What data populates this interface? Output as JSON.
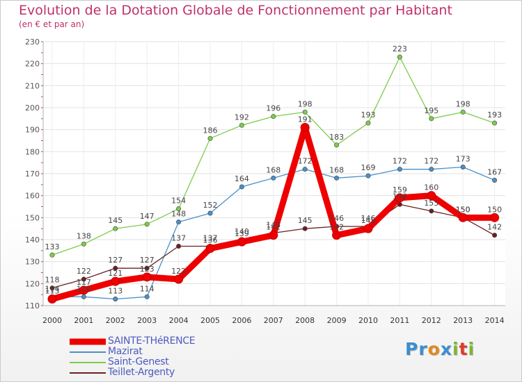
{
  "header": {
    "title": "Evolution de la Dotation Globale de Fonctionnement par Habitant",
    "subtitle": "(en € et par an)"
  },
  "logo": {
    "parts": [
      "Pr",
      "o",
      "x",
      "i",
      "t",
      "i"
    ],
    "colors": [
      "#3c8ed0",
      "#e08a1e",
      "#3c8ed0",
      "#7ab830",
      "#e03a2a",
      "#7ab830"
    ]
  },
  "chart_data": {
    "type": "line",
    "title": "Evolution de la Dotation Globale de Fonctionnement par Habitant",
    "subtitle": "(en € et par an)",
    "x": [
      "2000",
      "2001",
      "2002",
      "2003",
      "2004",
      "2005",
      "2006",
      "2007",
      "2008",
      "2009",
      "2010",
      "2011",
      "2012",
      "2013",
      "2014"
    ],
    "ylim": [
      110,
      230
    ],
    "yticks": [
      110,
      120,
      130,
      140,
      150,
      160,
      170,
      180,
      190,
      200,
      210,
      220,
      230
    ],
    "grid": true,
    "legend_position": "bottom-left",
    "series": [
      {
        "name": "SAINTE-THéRENCE",
        "color": "#ee0000",
        "emphasis": true,
        "values": [
          113,
          117,
          121,
          123,
          122,
          136,
          139,
          142,
          191,
          142,
          145,
          159,
          160,
          150,
          150
        ]
      },
      {
        "name": "Mazirat",
        "color": "#4a90c8",
        "values": [
          114,
          114,
          113,
          114,
          148,
          152,
          164,
          168,
          172,
          168,
          169,
          172,
          172,
          173,
          167
        ]
      },
      {
        "name": "Saint-Genest",
        "color": "#7dcb4a",
        "values": [
          133,
          138,
          145,
          147,
          154,
          186,
          192,
          196,
          198,
          183,
          193,
          223,
          195,
          198,
          193
        ]
      },
      {
        "name": "Teillet-Argenty",
        "color": "#6b1f1f",
        "values": [
          118,
          122,
          127,
          127,
          137,
          137,
          140,
          143,
          145,
          146,
          146,
          156,
          153,
          150,
          142
        ]
      }
    ]
  }
}
